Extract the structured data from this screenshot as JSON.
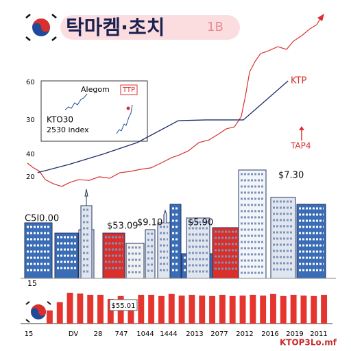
{
  "header": {
    "title": "탁마켐·초치",
    "badge": "1B"
  },
  "chart_data": [
    {
      "type": "line",
      "axis_labels": [
        "60",
        "30",
        "40",
        "20"
      ],
      "xlim": [
        0,
        100
      ],
      "ylim": [
        0,
        100
      ],
      "inset": {
        "name": "Alegom",
        "tag": "TTP",
        "line1": "KTO30",
        "line2": "2530 index"
      },
      "annotations": [
        "KTP",
        "TAP4",
        "$7.30",
        "C5I0.00",
        "$53.09",
        "$9.10",
        "$5.90"
      ],
      "series": [
        {
          "color": "#d9302c",
          "x": [
            0,
            1.8,
            4.1,
            6.0,
            8.7,
            11.5,
            14.3,
            17.2,
            20.7,
            24.1,
            27.6,
            31.0,
            34.5,
            37.9,
            41.4,
            44.8,
            48.3,
            51.0,
            54.0,
            57.5,
            60.9,
            63.9,
            66.7,
            69.4,
            71.7,
            73.1,
            74.5,
            76.3,
            78.2,
            80.9,
            83.9,
            86.9,
            89.2,
            92.0,
            94.7,
            97.0,
            98.9
          ],
          "values": [
            16.2,
            13.8,
            11.5,
            6.9,
            4.6,
            3.1,
            5.4,
            6.9,
            6.5,
            8.5,
            7.7,
            10.8,
            11.5,
            12.7,
            13.5,
            16.2,
            19.2,
            20.8,
            23.1,
            27.7,
            29.2,
            32.3,
            35.4,
            36.5,
            42.3,
            53.8,
            67.3,
            73.1,
            77.7,
            79.2,
            81.5,
            80.0,
            84.6,
            87.7,
            91.5,
            93.8,
            99.2
          ]
        },
        {
          "color": "#1f2a6b",
          "x": [
            3.4,
            13.8,
            25.3,
            36.8,
            50.6,
            59.8,
            72.4,
            87.4
          ],
          "values": [
            10.8,
            15.4,
            21.2,
            27.7,
            40.0,
            40.4,
            40.4,
            62.3
          ]
        }
      ]
    },
    {
      "type": "bar",
      "color": "#e5352f",
      "axis_label": "15",
      "ylim": [
        0,
        100
      ],
      "values": [
        32,
        52,
        75,
        73,
        70,
        70,
        60,
        67,
        42,
        70,
        70,
        67,
        72,
        68,
        70,
        68,
        67,
        70,
        67,
        68,
        70,
        68,
        72,
        67,
        70,
        68,
        67,
        70
      ],
      "annotation": "$55.01",
      "x_labels": [
        "15",
        "DV",
        "28",
        "747",
        "1044",
        "1444",
        "2013",
        "2077",
        "2012",
        "2016",
        "2019",
        "2011"
      ]
    }
  ],
  "footer": "KTOP3Lo.mf"
}
